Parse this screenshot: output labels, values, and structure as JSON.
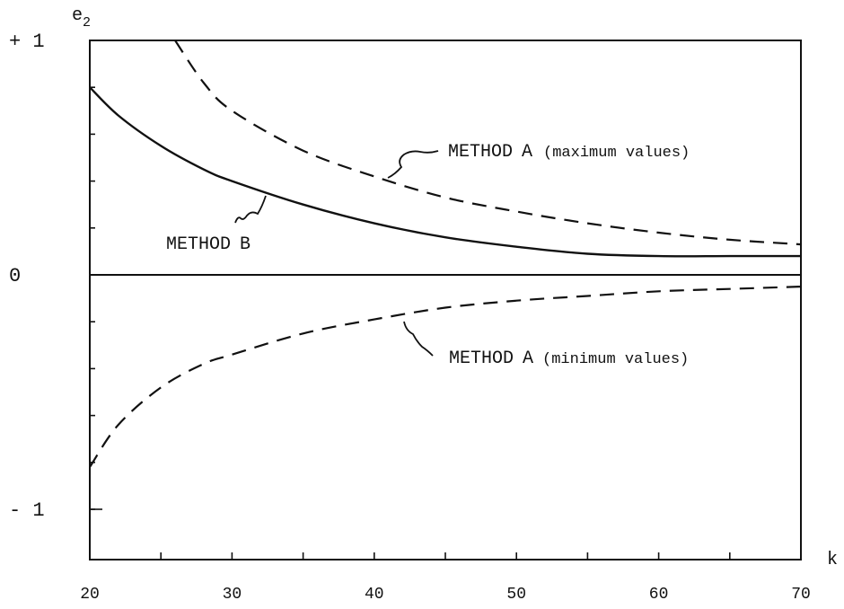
{
  "chart_data": {
    "type": "line",
    "title": "",
    "xlabel": "k",
    "ylabel": "e2",
    "xlim": [
      20,
      70
    ],
    "ylim": [
      -1.2,
      1
    ],
    "xticks": [
      20,
      30,
      40,
      50,
      60,
      70
    ],
    "xtick_labels": [
      "20",
      "30",
      "40",
      "50",
      "60",
      "70"
    ],
    "yticks": [
      1,
      0,
      -1
    ],
    "ytick_labels": [
      "+ 1",
      "0",
      "- 1"
    ],
    "grid": false,
    "series": [
      {
        "name": "METHOD A (maximum values)",
        "style": "dashed",
        "x": [
          26,
          28,
          30,
          35,
          40,
          45,
          50,
          55,
          60,
          65,
          70
        ],
        "y": [
          1.0,
          0.82,
          0.7,
          0.53,
          0.42,
          0.33,
          0.27,
          0.22,
          0.18,
          0.15,
          0.13
        ]
      },
      {
        "name": "METHOD B",
        "style": "solid",
        "x": [
          20,
          22,
          25,
          28,
          30,
          35,
          40,
          45,
          50,
          55,
          60,
          65,
          70
        ],
        "y": [
          0.8,
          0.68,
          0.55,
          0.45,
          0.4,
          0.3,
          0.22,
          0.16,
          0.12,
          0.09,
          0.08,
          0.08,
          0.08
        ]
      },
      {
        "name": "METHOD A (minimum values)",
        "style": "dashed",
        "x": [
          20,
          22,
          25,
          28,
          30,
          35,
          40,
          45,
          50,
          55,
          60,
          65,
          70
        ],
        "y": [
          -0.82,
          -0.64,
          -0.48,
          -0.38,
          -0.34,
          -0.25,
          -0.19,
          -0.14,
          -0.11,
          -0.09,
          -0.07,
          -0.06,
          -0.05
        ]
      }
    ],
    "annotations": [
      {
        "id": "method-a-max",
        "method_word": "METHOD",
        "method_letter": "A",
        "paren": "(maximum values)",
        "series_index": 0
      },
      {
        "id": "method-b",
        "method_word": "METHOD",
        "method_letter": "B",
        "paren": "",
        "series_index": 1
      },
      {
        "id": "method-a-min",
        "method_word": "METHOD",
        "method_letter": "A",
        "paren": "(minimum values)",
        "series_index": 2
      }
    ]
  }
}
